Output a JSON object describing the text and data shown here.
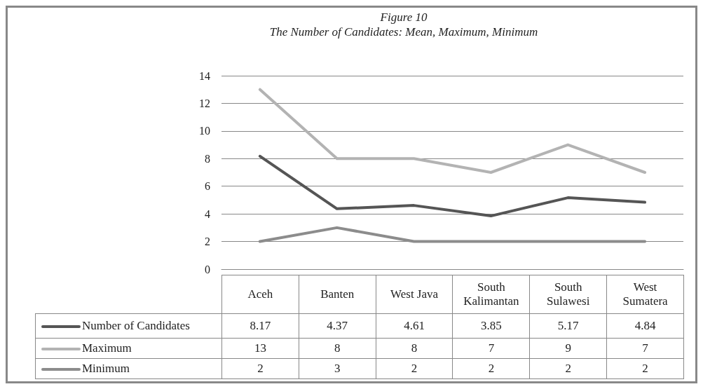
{
  "chart_data": {
    "type": "line",
    "title": "Figure 10",
    "subtitle": "The Number of Candidates: Mean, Maximum, Minimum",
    "categories": [
      "Aceh",
      "Banten",
      "West Java",
      "South Kalimantan",
      "South Sulawesi",
      "West Sumatera"
    ],
    "series": [
      {
        "name": "Number of Candidates",
        "color": "#555555",
        "values": [
          8.17,
          4.37,
          4.61,
          3.85,
          5.17,
          4.84
        ]
      },
      {
        "name": "Maximum",
        "color": "#b3b3b3",
        "values": [
          13,
          8,
          8,
          7,
          9,
          7
        ]
      },
      {
        "name": "Minimum",
        "color": "#8c8c8c",
        "values": [
          2,
          3,
          2,
          2,
          2,
          2
        ]
      }
    ],
    "ylim": [
      0,
      14
    ],
    "yticks": [
      0,
      2,
      4,
      6,
      8,
      10,
      12,
      14
    ],
    "grid": "y",
    "legend": "bottom left",
    "marker": "none",
    "line_style": "solid",
    "data_labels": true
  }
}
